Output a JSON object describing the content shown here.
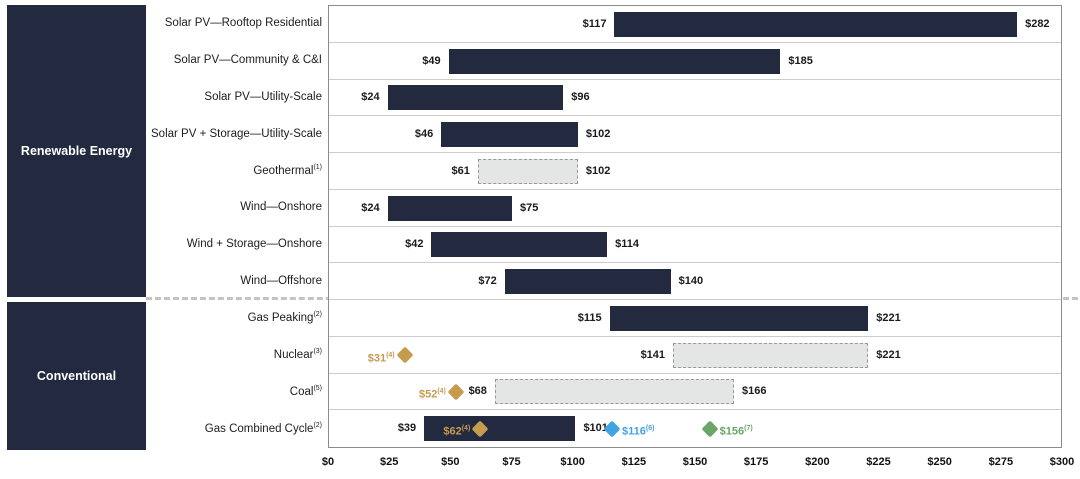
{
  "sections": {
    "renewable": {
      "label": "Renewable Energy"
    },
    "conventional": {
      "label": "Conventional"
    }
  },
  "chart_data": {
    "type": "bar",
    "subtype": "horizontal-range-bar",
    "title": "",
    "xlabel": "",
    "axis": {
      "min": 0,
      "max": 300,
      "step": 25,
      "ticks": [
        "$0",
        "$25",
        "$50",
        "$75",
        "$100",
        "$125",
        "$150",
        "$175",
        "$200",
        "$225",
        "$250",
        "$275",
        "$300"
      ]
    },
    "colors": {
      "bar_navy": "#232A40",
      "dashed_fill": "#E4E6E6",
      "gold": "#C59B4E",
      "blue": "#41A4E2",
      "green": "#6BA568"
    },
    "rows": [
      {
        "section": "renewable",
        "label": "Solar PV—Rooftop Residential",
        "sup": "",
        "low": 117,
        "high": 282,
        "low_label": "$117",
        "high_label": "$282",
        "bar": "solid",
        "markers": []
      },
      {
        "section": "renewable",
        "label": "Solar PV—Community & C&I",
        "sup": "",
        "low": 49,
        "high": 185,
        "low_label": "$49",
        "high_label": "$185",
        "bar": "solid",
        "markers": []
      },
      {
        "section": "renewable",
        "label": "Solar PV—Utility-Scale",
        "sup": "",
        "low": 24,
        "high": 96,
        "low_label": "$24",
        "high_label": "$96",
        "bar": "solid",
        "markers": []
      },
      {
        "section": "renewable",
        "label": "Solar PV + Storage—Utility-Scale",
        "sup": "",
        "low": 46,
        "high": 102,
        "low_label": "$46",
        "high_label": "$102",
        "bar": "solid",
        "markers": []
      },
      {
        "section": "renewable",
        "label": "Geothermal",
        "sup": "(1)",
        "low": 61,
        "high": 102,
        "low_label": "$61",
        "high_label": "$102",
        "bar": "dashed",
        "markers": []
      },
      {
        "section": "renewable",
        "label": "Wind—Onshore",
        "sup": "",
        "low": 24,
        "high": 75,
        "low_label": "$24",
        "high_label": "$75",
        "bar": "solid",
        "markers": []
      },
      {
        "section": "renewable",
        "label": "Wind + Storage—Onshore",
        "sup": "",
        "low": 42,
        "high": 114,
        "low_label": "$42",
        "high_label": "$114",
        "bar": "solid",
        "markers": []
      },
      {
        "section": "renewable",
        "label": "Wind—Offshore",
        "sup": "",
        "low": 72,
        "high": 140,
        "low_label": "$72",
        "high_label": "$140",
        "bar": "solid",
        "markers": []
      },
      {
        "section": "conventional",
        "label": "Gas Peaking",
        "sup": "(2)",
        "low": 115,
        "high": 221,
        "low_label": "$115",
        "high_label": "$221",
        "bar": "solid",
        "markers": []
      },
      {
        "section": "conventional",
        "label": "Nuclear",
        "sup": "(3)",
        "low": 141,
        "high": 221,
        "low_label": "$141",
        "high_label": "$221",
        "bar": "dashed",
        "markers": [
          {
            "value": 31,
            "label": "$31",
            "sup": "(4)",
            "color": "gold",
            "side": "left"
          }
        ]
      },
      {
        "section": "conventional",
        "label": "Coal",
        "sup": "(5)",
        "low": 68,
        "high": 166,
        "low_label": "$68",
        "high_label": "$166",
        "bar": "dashed",
        "markers": [
          {
            "value": 52,
            "label": "$52",
            "sup": "(4)",
            "color": "gold",
            "side": "left"
          }
        ]
      },
      {
        "section": "conventional",
        "label": "Gas Combined Cycle",
        "sup": "(2)",
        "low": 39,
        "high": 101,
        "low_label": "$39",
        "high_label": "$101",
        "bar": "solid",
        "markers": [
          {
            "value": 62,
            "label": "$62",
            "sup": "(4)",
            "color": "gold",
            "side": "left"
          },
          {
            "value": 116,
            "label": "$116",
            "sup": "(6)",
            "color": "blue",
            "side": "right"
          },
          {
            "value": 156,
            "label": "$156",
            "sup": "(7)",
            "color": "green",
            "side": "right"
          }
        ]
      }
    ]
  }
}
